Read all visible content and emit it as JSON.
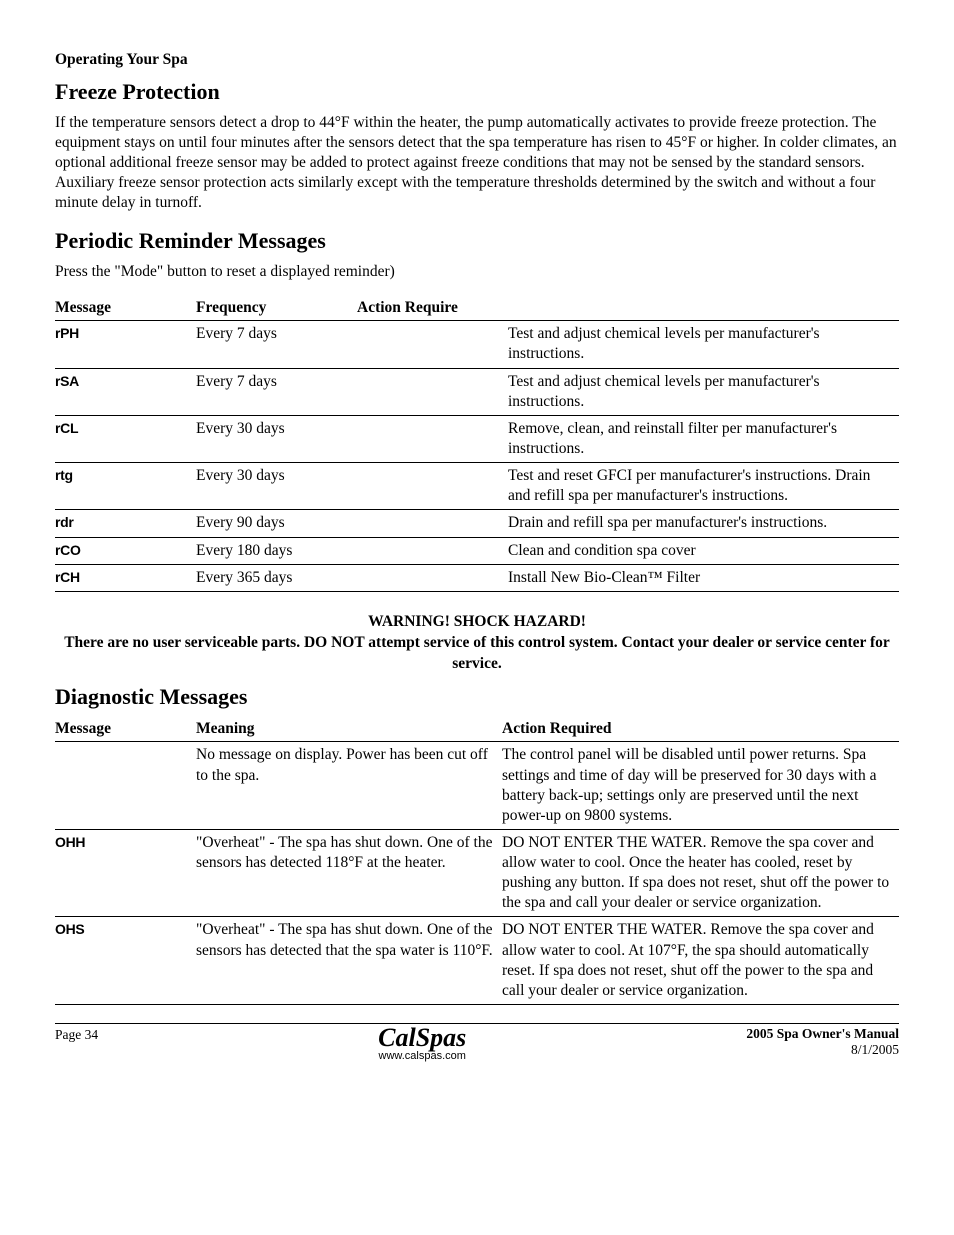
{
  "header": {
    "section": "Operating Your Spa"
  },
  "freeze": {
    "title": "Freeze Protection",
    "body": "If the temperature sensors detect a drop to 44°F within the heater, the pump automatically activates to provide freeze protection. The equipment stays on until four minutes after the sensors detect that the spa temperature has risen to 45°F or higher. In colder climates, an optional additional freeze sensor may be added to protect against freeze conditions that may not be sensed by the standard sensors. Auxiliary freeze sensor protection acts similarly except with the temperature thresholds determined by the switch and without a four minute delay in turnoff."
  },
  "periodic": {
    "title": "Periodic Reminder Messages",
    "intro": "Press the \"Mode\" button to reset a displayed reminder)",
    "columns": {
      "c1": "Message",
      "c2": "Frequency",
      "c3": "Action Require"
    },
    "rows": [
      {
        "code": "rPH",
        "freq": "Every 7 days",
        "action": "Test and adjust chemical levels per manufacturer's instructions."
      },
      {
        "code": "rSA",
        "freq": "Every 7 days",
        "action": "Test and adjust chemical levels per manufacturer's instructions."
      },
      {
        "code": "rCL",
        "freq": "Every 30 days",
        "action": "Remove, clean, and reinstall filter per manufacturer's instructions."
      },
      {
        "code": "rtg",
        "freq": "Every 30 days",
        "action": "Test and reset GFCI per manufacturer's instructions. Drain and refill spa per manufacturer's instructions."
      },
      {
        "code": "rdr",
        "freq": "Every 90 days",
        "action": "Drain and refill spa per manufacturer's instructions."
      },
      {
        "code": "rCO",
        "freq": "Every 180 days",
        "action": "Clean and condition spa cover"
      },
      {
        "code": "rCH",
        "freq": "Every 365 days",
        "action": "Install New Bio-Clean™ Filter"
      }
    ]
  },
  "warning": {
    "line1": "WARNING!  SHOCK HAZARD!",
    "line2": "There are no user serviceable parts. DO NOT attempt service of this control system. Contact your dealer or service center for service."
  },
  "diagnostic": {
    "title": "Diagnostic Messages",
    "columns": {
      "c1": "Message",
      "c2": "Meaning",
      "c3": "Action Required"
    },
    "rows": [
      {
        "code": "",
        "meaning": "No message on display. Power has been cut off to the spa.",
        "action": "The control panel will be disabled until power returns. Spa settings and time of day will be preserved for 30 days with a battery back-up; settings only are preserved until the next power-up on 9800 systems."
      },
      {
        "code": "OHH",
        "meaning": "\"Overheat\" - The spa has shut down. One of the sensors has detected 118°F at the heater.",
        "action": "DO NOT ENTER THE WATER. Remove the spa cover and allow water to cool. Once the heater has cooled, reset by pushing any button. If spa does not reset, shut off the power to the spa and call your dealer or service organization."
      },
      {
        "code": "OHS",
        "meaning": "\"Overheat\" - The spa has shut down. One of the sensors has detected that the spa water is 110°F.",
        "action": "DO NOT ENTER THE WATER. Remove the spa cover and allow water to cool. At 107°F, the spa should automatically reset. If spa does not reset, shut off the power to the spa and call your dealer or service organization."
      }
    ]
  },
  "footer": {
    "page": "Page 34",
    "brand": "CalSpas",
    "url": "www.calspas.com",
    "manual": "2005 Spa Owner's Manual",
    "date": "8/1/2005"
  }
}
